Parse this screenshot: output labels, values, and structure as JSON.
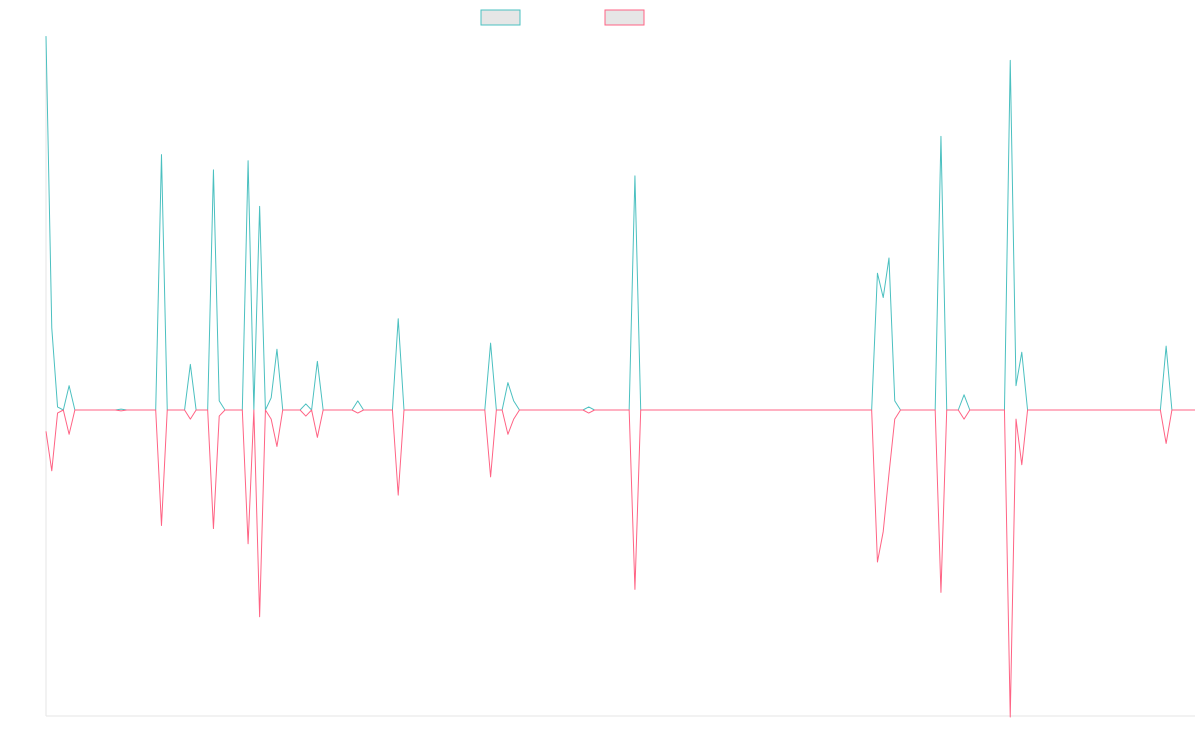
{
  "chart_data": {
    "type": "line",
    "title": "",
    "xlabel": "",
    "ylabel": "",
    "legend_position": "top-center",
    "grid": false,
    "colors": {
      "series_1": "#4bc0c0",
      "series_2": "#ff6384",
      "axis": "#e5e5e5",
      "swatch_fill": "#e6e6e6"
    },
    "n_points": 200,
    "ylim": [
      -1,
      1
    ],
    "series": [
      {
        "name": "",
        "color": "#4bc0c0",
        "points": [
          [
            0,
            1.23
          ],
          [
            1,
            0.27
          ],
          [
            2,
            0.01
          ],
          [
            4,
            0.08
          ],
          [
            13,
            0.003
          ],
          [
            20,
            0.84
          ],
          [
            25,
            0.15
          ],
          [
            29,
            0.79
          ],
          [
            30,
            0.03
          ],
          [
            35,
            0.82
          ],
          [
            37,
            0.67
          ],
          [
            39,
            0.04
          ],
          [
            40,
            0.2
          ],
          [
            45,
            0.02
          ],
          [
            47,
            0.16
          ],
          [
            54,
            0.03
          ],
          [
            61,
            0.3
          ],
          [
            77,
            0.22
          ],
          [
            80,
            0.09
          ],
          [
            81,
            0.03
          ],
          [
            94,
            0.01
          ],
          [
            102,
            0.77
          ],
          [
            144,
            0.45
          ],
          [
            145,
            0.37
          ],
          [
            146,
            0.5
          ],
          [
            147,
            0.03
          ],
          [
            155,
            0.9
          ],
          [
            159,
            0.05
          ],
          [
            167,
            1.15
          ],
          [
            168,
            0.08
          ],
          [
            169,
            0.19
          ],
          [
            194,
            0.21
          ]
        ]
      },
      {
        "name": "",
        "color": "#ff6384",
        "points": [
          [
            0,
            -0.07
          ],
          [
            1,
            -0.2
          ],
          [
            2,
            -0.01
          ],
          [
            4,
            -0.08
          ],
          [
            13,
            -0.003
          ],
          [
            20,
            -0.38
          ],
          [
            25,
            -0.03
          ],
          [
            29,
            -0.39
          ],
          [
            30,
            -0.02
          ],
          [
            35,
            -0.44
          ],
          [
            37,
            -0.68
          ],
          [
            39,
            -0.03
          ],
          [
            40,
            -0.12
          ],
          [
            45,
            -0.02
          ],
          [
            47,
            -0.09
          ],
          [
            54,
            -0.01
          ],
          [
            61,
            -0.28
          ],
          [
            77,
            -0.22
          ],
          [
            80,
            -0.08
          ],
          [
            81,
            -0.03
          ],
          [
            94,
            -0.01
          ],
          [
            102,
            -0.59
          ],
          [
            144,
            -0.5
          ],
          [
            145,
            -0.4
          ],
          [
            146,
            -0.21
          ],
          [
            147,
            -0.03
          ],
          [
            155,
            -0.6
          ],
          [
            159,
            -0.03
          ],
          [
            167,
            -1.01
          ],
          [
            168,
            -0.03
          ],
          [
            169,
            -0.18
          ],
          [
            194,
            -0.11
          ]
        ]
      }
    ]
  }
}
